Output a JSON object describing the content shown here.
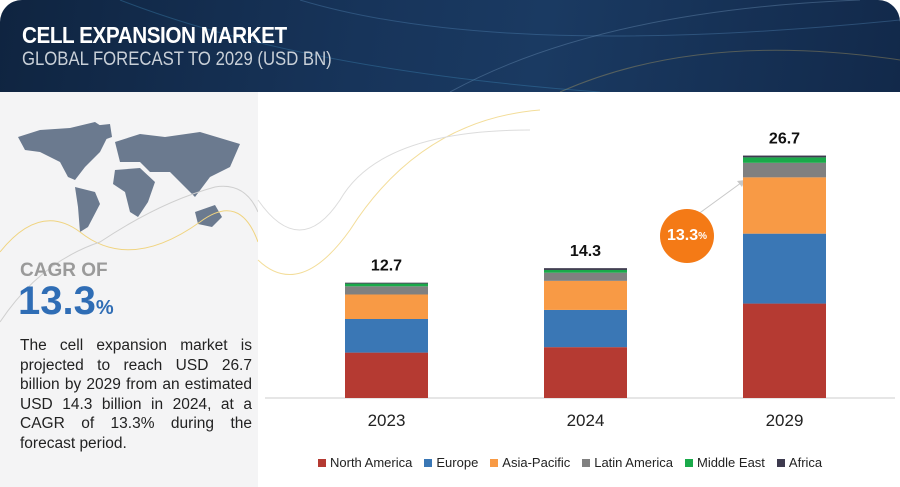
{
  "header": {
    "title": "CELL EXPANSION MARKET",
    "subtitle": "GLOBAL FORECAST TO 2029 (USD BN)"
  },
  "left_panel": {
    "cagr_label": "CAGR OF",
    "cagr_value": "13.3",
    "cagr_unit": "%",
    "description": "The cell expansion market is projected to reach USD 26.7 billion by 2029 from an estimated USD 14.3 billion in 2024, at a CAGR of 13.3% during the forecast period."
  },
  "chart_data": {
    "type": "bar",
    "stacked": true,
    "categories": [
      "2023",
      "2024",
      "2029"
    ],
    "totals": [
      "12.7",
      "14.3",
      "26.7"
    ],
    "series": [
      {
        "name": "North America",
        "color": "#b53a32",
        "values": [
          5.0,
          5.6,
          10.4
        ]
      },
      {
        "name": "Europe",
        "color": "#3a77b5",
        "values": [
          3.7,
          4.1,
          7.7
        ]
      },
      {
        "name": "Asia-Pacific",
        "color": "#f89a45",
        "values": [
          2.7,
          3.2,
          6.2
        ]
      },
      {
        "name": "Latin America",
        "color": "#808080",
        "values": [
          0.9,
          0.9,
          1.6
        ]
      },
      {
        "name": "Middle East",
        "color": "#1aaa4a",
        "values": [
          0.3,
          0.3,
          0.6
        ]
      },
      {
        "name": "Africa",
        "color": "#3d3a4e",
        "values": [
          0.1,
          0.2,
          0.2
        ]
      }
    ],
    "annotation": {
      "value": "13.3",
      "unit": "%",
      "color": "#f47a16"
    },
    "legend": "bottom",
    "grid": false,
    "ylim": [
      0,
      30
    ]
  }
}
